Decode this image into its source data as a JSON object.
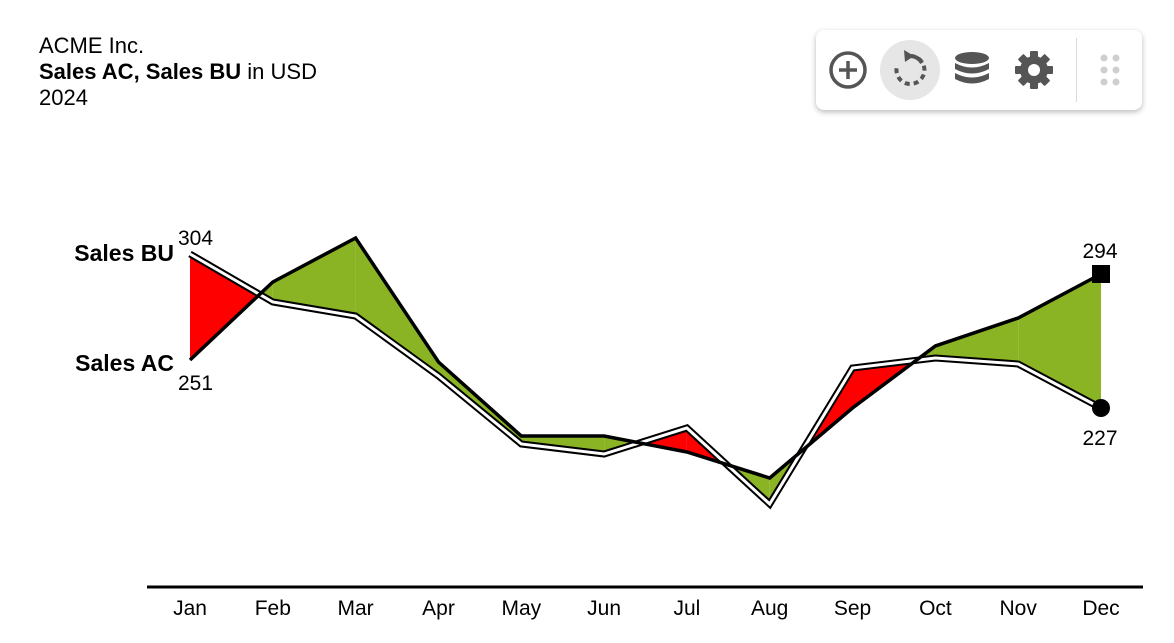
{
  "header": {
    "company": "ACME Inc.",
    "measures_bold": "Sales AC, Sales BU",
    "unit_text": " in USD",
    "period": "2024"
  },
  "toolbar": {
    "buttons": [
      {
        "icon": "zoom-in-icon"
      },
      {
        "icon": "refresh-icon",
        "active": true
      },
      {
        "icon": "database-icon"
      },
      {
        "icon": "settings-icon"
      }
    ],
    "handle_icon": "drag-handle-icon"
  },
  "colors": {
    "positive": "#8ab424",
    "negative": "#ff0000",
    "line": "#000000"
  },
  "chart_data": {
    "type": "line",
    "categories": [
      "Jan",
      "Feb",
      "Mar",
      "Apr",
      "May",
      "Jun",
      "Jul",
      "Aug",
      "Sep",
      "Oct",
      "Nov",
      "Dec"
    ],
    "series": [
      {
        "name": "Sales AC",
        "values": [
          251,
          290,
          312,
          250,
          213,
          213,
          205,
          192,
          227,
          258,
          272,
          294
        ]
      },
      {
        "name": "Sales BU",
        "values": [
          304,
          280,
          273,
          243,
          209,
          204,
          217,
          179,
          247,
          252,
          249,
          227
        ]
      }
    ],
    "labels": {
      "ac_first": "251",
      "bu_first": "304",
      "ac_last": "294",
      "bu_last": "227"
    },
    "ylim": [
      150,
      330
    ]
  }
}
